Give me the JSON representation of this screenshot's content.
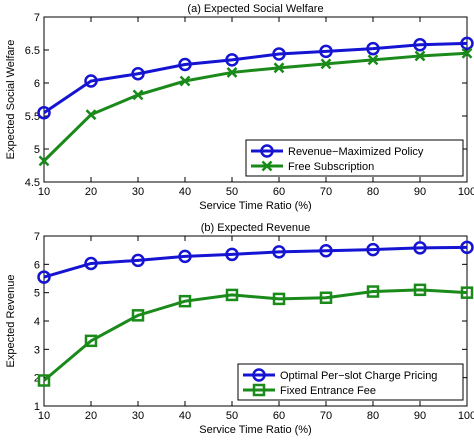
{
  "chart_data": [
    {
      "type": "line",
      "title": "(a) Expected Social Welfare",
      "xlabel": "Service Time Ratio (%)",
      "ylabel": "Expected Social Welfare",
      "xlim": [
        10,
        100
      ],
      "ylim": [
        4.5,
        7
      ],
      "xticks": [
        10,
        20,
        30,
        40,
        50,
        60,
        70,
        80,
        90,
        100
      ],
      "yticks": [
        4.5,
        5,
        5.5,
        6,
        6.5,
        7
      ],
      "ytick_labels": [
        "4.5",
        "5",
        "5.5",
        "6",
        "6.5",
        "7"
      ],
      "grid": false,
      "legend_position": "bottom-right",
      "x": [
        10,
        20,
        30,
        40,
        50,
        60,
        70,
        80,
        90,
        100
      ],
      "series": [
        {
          "name": "Revenue−Maximized Policy",
          "marker": "circle",
          "color": "#1414d2",
          "values": [
            5.55,
            6.03,
            6.14,
            6.28,
            6.35,
            6.44,
            6.48,
            6.52,
            6.58,
            6.6
          ]
        },
        {
          "name": "Free Subscription",
          "marker": "x",
          "color": "#1a8a1a",
          "values": [
            4.82,
            5.52,
            5.82,
            6.03,
            6.16,
            6.23,
            6.29,
            6.35,
            6.41,
            6.45
          ]
        }
      ]
    },
    {
      "type": "line",
      "title": "(b) Expected Revenue",
      "xlabel": "Service Time Ratio (%)",
      "ylabel": "Expected Revenue",
      "xlim": [
        10,
        100
      ],
      "ylim": [
        1,
        7
      ],
      "xticks": [
        10,
        20,
        30,
        40,
        50,
        60,
        70,
        80,
        90,
        100
      ],
      "yticks": [
        1,
        2,
        3,
        4,
        5,
        6,
        7
      ],
      "ytick_labels": [
        "1",
        "2",
        "3",
        "4",
        "5",
        "6",
        "7"
      ],
      "grid": false,
      "legend_position": "bottom-right",
      "x": [
        10,
        20,
        30,
        40,
        50,
        60,
        70,
        80,
        90,
        100
      ],
      "series": [
        {
          "name": "Optimal Per−slot Charge Pricing",
          "marker": "circle",
          "color": "#1414d2",
          "values": [
            5.55,
            6.03,
            6.14,
            6.28,
            6.35,
            6.44,
            6.48,
            6.52,
            6.58,
            6.6
          ]
        },
        {
          "name": "Fixed Entrance Fee",
          "marker": "square",
          "color": "#1a8a1a",
          "values": [
            1.9,
            3.3,
            4.2,
            4.7,
            4.92,
            4.78,
            4.82,
            5.04,
            5.1,
            5.0
          ]
        }
      ]
    }
  ]
}
